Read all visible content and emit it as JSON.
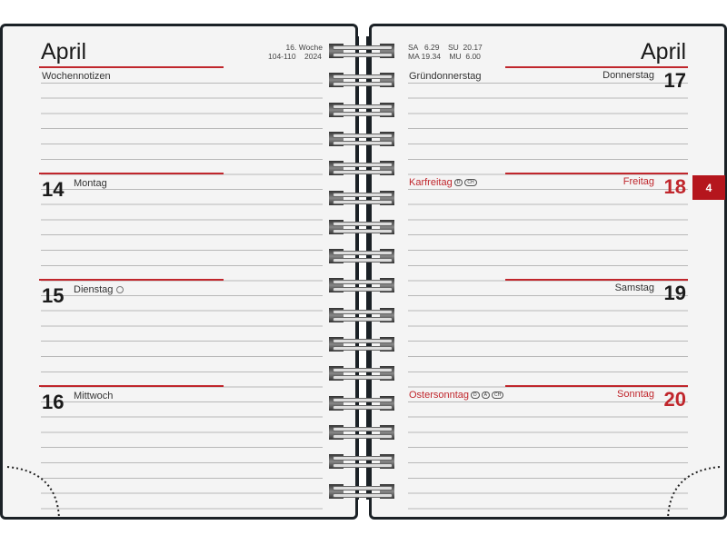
{
  "left_page": {
    "month": "April",
    "week_label": "16. Woche",
    "day_range": "104-110",
    "year": "2024",
    "notes_label": "Wochennotizen",
    "days": [
      {
        "number": "14",
        "name": "Montag"
      },
      {
        "number": "15",
        "name": "Dienstag",
        "moon_icon": "full-moon-icon"
      },
      {
        "number": "16",
        "name": "Mittwoch"
      }
    ]
  },
  "right_page": {
    "month": "April",
    "sun_moon": {
      "sa": "SA",
      "sa_time": "6.29",
      "su": "SU",
      "su_time": "20.17",
      "ma": "MA",
      "ma_time": "19.34",
      "mu": "MU",
      "mu_time": "6.00"
    },
    "days": [
      {
        "number": "17",
        "name": "Donnerstag",
        "holiday": "Gründonnerstag",
        "badges": []
      },
      {
        "number": "18",
        "name": "Freitag",
        "holiday": "Karfreitag",
        "badges": [
          "D",
          "CH"
        ],
        "highlight": true
      },
      {
        "number": "19",
        "name": "Samstag",
        "holiday": "",
        "badges": []
      },
      {
        "number": "20",
        "name": "Sonntag",
        "holiday": "Ostersonntag",
        "badges": [
          "D",
          "A",
          "CH"
        ],
        "highlight": true
      }
    ]
  },
  "month_tab": "4",
  "colors": {
    "accent_red": "#c0262c",
    "cover": "#1b2126",
    "paper": "#f4f4f4",
    "tab": "#b5161d"
  }
}
